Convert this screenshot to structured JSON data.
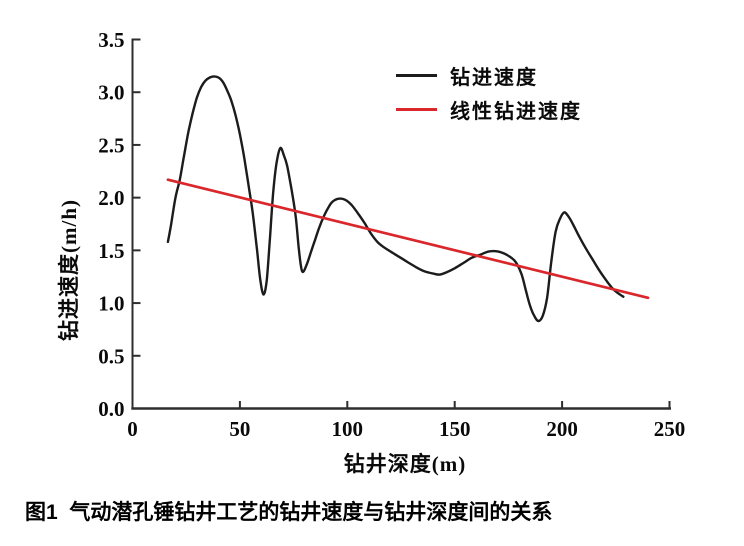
{
  "figure": {
    "caption": "图1  气动潜孔锤钻井工艺的钻井速度与钻井深度间的关系"
  },
  "colors": {
    "axis": "#2e2e2e",
    "curve": "#1c1c1c",
    "trend": "#d9272c",
    "text": "#0a0a0a",
    "background": "#ffffff"
  },
  "chart_data": {
    "type": "line",
    "title": "",
    "xlabel": "钻井深度(m)",
    "ylabel": "钻进速度(m/h)",
    "xlim": [
      0,
      250
    ],
    "ylim": [
      0,
      3.5
    ],
    "x_ticks": [
      0,
      50,
      100,
      150,
      200,
      250
    ],
    "x_tick_labels": [
      "0",
      "50",
      "100",
      "150",
      "200",
      "250"
    ],
    "y_ticks": [
      0,
      0.5,
      1.0,
      1.5,
      2.0,
      2.5,
      3.0,
      3.5
    ],
    "y_tick_labels": [
      "0.0",
      "0.5",
      "1.0",
      "1.5",
      "2.0",
      "2.5",
      "3.0",
      "3.5"
    ],
    "grid": false,
    "legend_position": "upper-right-inside",
    "series": [
      {
        "name": "钻进速度",
        "color": "#1c1c1c",
        "style": "curve",
        "points": [
          [
            16.5,
            1.58
          ],
          [
            18,
            1.75
          ],
          [
            20,
            2.0
          ],
          [
            22,
            2.17
          ],
          [
            24,
            2.4
          ],
          [
            26,
            2.62
          ],
          [
            28,
            2.8
          ],
          [
            30,
            2.95
          ],
          [
            32,
            3.05
          ],
          [
            34,
            3.11
          ],
          [
            36,
            3.14
          ],
          [
            38,
            3.15
          ],
          [
            40,
            3.14
          ],
          [
            42,
            3.1
          ],
          [
            44,
            3.02
          ],
          [
            46,
            2.92
          ],
          [
            48,
            2.78
          ],
          [
            50,
            2.6
          ],
          [
            52,
            2.38
          ],
          [
            54,
            2.12
          ],
          [
            56,
            1.85
          ],
          [
            58,
            1.5
          ],
          [
            59.5,
            1.22
          ],
          [
            61,
            1.08
          ],
          [
            62.5,
            1.22
          ],
          [
            64,
            1.62
          ],
          [
            65.5,
            2.05
          ],
          [
            67,
            2.32
          ],
          [
            68.8,
            2.47
          ],
          [
            70.5,
            2.4
          ],
          [
            72,
            2.3
          ],
          [
            74,
            2.08
          ],
          [
            76,
            1.82
          ],
          [
            77.5,
            1.5
          ],
          [
            79,
            1.3
          ],
          [
            81,
            1.36
          ],
          [
            83,
            1.48
          ],
          [
            85,
            1.6
          ],
          [
            87,
            1.72
          ],
          [
            89,
            1.82
          ],
          [
            91,
            1.9
          ],
          [
            93,
            1.96
          ],
          [
            96,
            1.99
          ],
          [
            99,
            1.98
          ],
          [
            102,
            1.93
          ],
          [
            105,
            1.85
          ],
          [
            108,
            1.76
          ],
          [
            111,
            1.66
          ],
          [
            114,
            1.58
          ],
          [
            117,
            1.53
          ],
          [
            120,
            1.49
          ],
          [
            124,
            1.44
          ],
          [
            128,
            1.39
          ],
          [
            132,
            1.34
          ],
          [
            136,
            1.3
          ],
          [
            140,
            1.28
          ],
          [
            143,
            1.27
          ],
          [
            146,
            1.29
          ],
          [
            150,
            1.33
          ],
          [
            154,
            1.38
          ],
          [
            158,
            1.43
          ],
          [
            162,
            1.46
          ],
          [
            166,
            1.49
          ],
          [
            170,
            1.49
          ],
          [
            174,
            1.46
          ],
          [
            178,
            1.4
          ],
          [
            181,
            1.28
          ],
          [
            183,
            1.13
          ],
          [
            185,
            0.98
          ],
          [
            187,
            0.88
          ],
          [
            189,
            0.83
          ],
          [
            191,
            0.88
          ],
          [
            193,
            1.05
          ],
          [
            195,
            1.4
          ],
          [
            197,
            1.68
          ],
          [
            199,
            1.8
          ],
          [
            201,
            1.86
          ],
          [
            203,
            1.82
          ],
          [
            205,
            1.75
          ],
          [
            208,
            1.63
          ],
          [
            211,
            1.52
          ],
          [
            214,
            1.42
          ],
          [
            217,
            1.32
          ],
          [
            220,
            1.23
          ],
          [
            223,
            1.15
          ],
          [
            225,
            1.11
          ],
          [
            227,
            1.08
          ],
          [
            228.5,
            1.06
          ]
        ]
      },
      {
        "name": "线性钻进速度",
        "color": "#d9272c",
        "style": "straight",
        "points": [
          [
            16.5,
            2.17
          ],
          [
            240,
            1.05
          ]
        ]
      }
    ]
  }
}
